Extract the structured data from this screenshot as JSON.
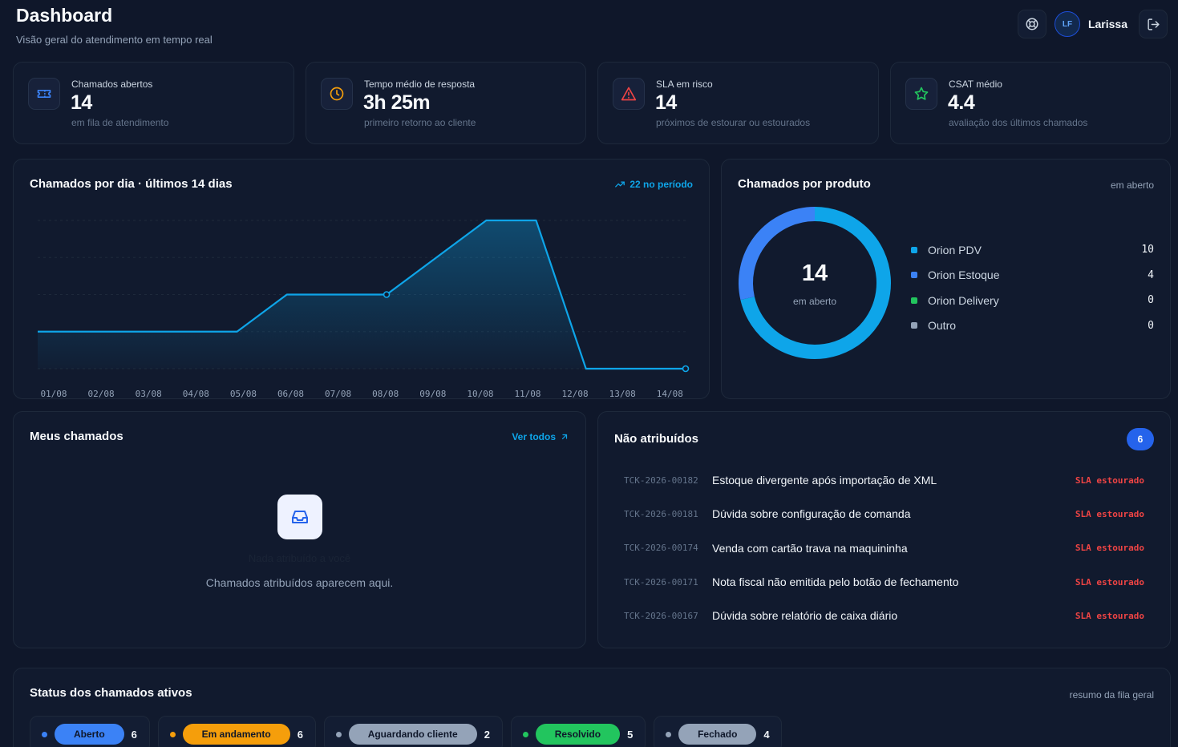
{
  "header": {
    "title": "Dashboard",
    "subtitle": "Visão geral do atendimento em tempo real",
    "user_initials": "LF",
    "user_name": "Larissa",
    "support_icon": "lifebuoy-icon",
    "logout_icon": "logout-icon"
  },
  "kpis": [
    {
      "label": "Chamados abertos",
      "value": "14",
      "sub": "em fila de atendimento",
      "icon": "ticket-icon",
      "color": "#3b82f6"
    },
    {
      "label": "Tempo médio de resposta",
      "value": "3h 25m",
      "sub": "primeiro retorno ao cliente",
      "icon": "clock-icon",
      "color": "#f59e0b"
    },
    {
      "label": "SLA em risco",
      "value": "14",
      "sub": "próximos de estourar ou estourados",
      "icon": "alert-triangle-icon",
      "color": "#ef4444"
    },
    {
      "label": "CSAT médio",
      "value": "4.4",
      "sub": "avaliação dos últimos chamados",
      "icon": "star-icon",
      "color": "#22c55e"
    }
  ],
  "daily": {
    "title": "Chamados por dia · últimos 14 dias",
    "link": "22 no período",
    "link_icon": "trending-up-icon"
  },
  "chart_data": {
    "type": "area",
    "title": "Chamados por dia · últimos 14 dias",
    "categories": [
      "01/08",
      "02/08",
      "03/08",
      "04/08",
      "05/08",
      "06/08",
      "07/08",
      "08/08",
      "09/08",
      "10/08",
      "11/08",
      "12/08",
      "13/08",
      "14/08"
    ],
    "values": [
      1,
      1,
      1,
      1,
      1,
      2,
      2,
      2,
      3,
      4,
      4,
      0,
      0,
      0
    ],
    "ylim": [
      0,
      4
    ],
    "grid": true,
    "color": "#0ea5e9"
  },
  "product": {
    "title": "Chamados por produto",
    "hint": "em aberto",
    "total": "14",
    "total_label": "em aberto",
    "items": [
      {
        "name": "Orion PDV",
        "count": "10",
        "color": "#0ea5e9"
      },
      {
        "name": "Orion Estoque",
        "count": "4",
        "color": "#3b82f6"
      },
      {
        "name": "Orion Delivery",
        "count": "0",
        "color": "#22c55e"
      },
      {
        "name": "Outro",
        "count": "0",
        "color": "#94a3b8"
      }
    ]
  },
  "my_tickets": {
    "title": "Meus chamados",
    "link": "Ver todos",
    "link_icon": "arrow-up-right-icon",
    "empty_icon": "inbox-icon",
    "empty_title": "Nada atribuído a você",
    "empty_text": "Chamados atribuídos aparecem aqui."
  },
  "unassigned": {
    "title": "Não atribuídos",
    "count": "6",
    "tickets": [
      {
        "id": "TCK-2026-00182",
        "title": "Estoque divergente após importação de XML",
        "sla": "SLA estourado"
      },
      {
        "id": "TCK-2026-00181",
        "title": "Dúvida sobre configuração de comanda",
        "sla": "SLA estourado"
      },
      {
        "id": "TCK-2026-00174",
        "title": "Venda com cartão trava na maquininha",
        "sla": "SLA estourado"
      },
      {
        "id": "TCK-2026-00171",
        "title": "Nota fiscal não emitida pelo botão de fechamento",
        "sla": "SLA estourado"
      },
      {
        "id": "TCK-2026-00167",
        "title": "Dúvida sobre relatório de caixa diário",
        "sla": "SLA estourado"
      }
    ]
  },
  "status": {
    "title": "Status dos chamados ativos",
    "hint": "resumo da fila geral",
    "items": [
      {
        "label": "Aberto",
        "count": "6",
        "color": "#3b82f6",
        "text_color": "#0f172a"
      },
      {
        "label": "Em andamento",
        "count": "6",
        "color": "#f59e0b",
        "text_color": "#0f172a"
      },
      {
        "label": "Aguardando cliente",
        "count": "2",
        "color": "#94a3b8",
        "text_color": "#0f172a"
      },
      {
        "label": "Resolvido",
        "count": "5",
        "color": "#22c55e",
        "text_color": "#0f172a"
      },
      {
        "label": "Fechado",
        "count": "4",
        "color": "#94a3b8",
        "text_color": "#0f172a"
      }
    ]
  }
}
